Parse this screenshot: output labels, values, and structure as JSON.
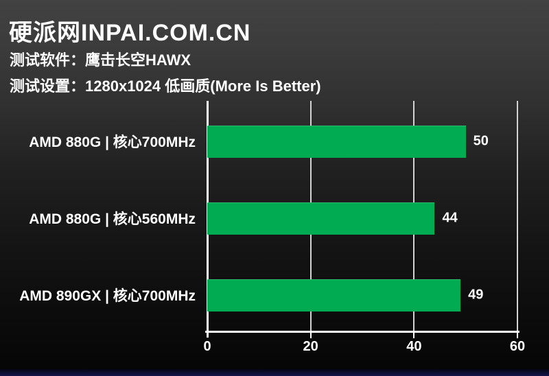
{
  "header": {
    "site_title": "硬派网INPAI.COM.CN",
    "test_software_label": "测试软件：",
    "test_software_value": "鹰击长空HAWX",
    "test_setting_label": "测试设置：",
    "test_setting_value": "1280x1024 低画质(More Is Better)"
  },
  "colors": {
    "bar_green": "#00ab51",
    "axis_white": "#ffffff",
    "gridline_gray": "#d4d4d4",
    "text_white": "#ffffff",
    "background_top_gray": "#414141",
    "background_bottom_black": "#050505",
    "bottom_strip_navy": "#0c0e33"
  },
  "chart_data": {
    "type": "bar",
    "orientation": "horizontal",
    "categories": [
      "AMD 880G | 核心700MHz",
      "AMD 880G | 核心560MHz",
      "AMD 890GX | 核心700MHz"
    ],
    "values": [
      50,
      44,
      49
    ],
    "value_labels": [
      "50",
      "44",
      "49"
    ],
    "xlim": [
      0,
      60
    ],
    "xticks": [
      0,
      20,
      40,
      60
    ],
    "grid": true,
    "legend": "none",
    "note": "More Is Better"
  }
}
